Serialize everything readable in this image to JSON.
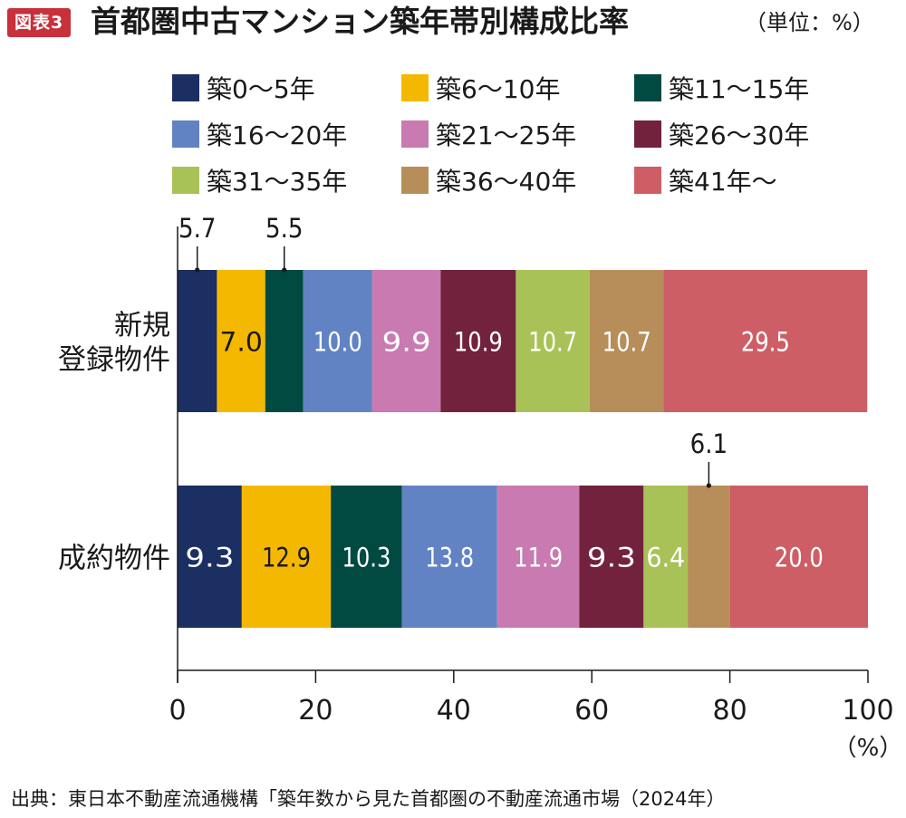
{
  "header": {
    "badge": "図表3",
    "title": "首都圏中古マンション築年帯別構成比率",
    "unit": "（単位：%）"
  },
  "footer": {
    "source": "出典：東日本不動産流通機構「築年数から見た首都圏の不動産流通市場（2024年）"
  },
  "chart_data": {
    "type": "bar",
    "orientation": "horizontal",
    "stacked": true,
    "categories": [
      "新規\n登録物件",
      "成約物件"
    ],
    "series": [
      {
        "name": "築0～5年",
        "color": "#1b2f63",
        "values": [
          5.7,
          9.3
        ]
      },
      {
        "name": "築6～10年",
        "color": "#f5b800",
        "values": [
          7.0,
          12.9
        ]
      },
      {
        "name": "築11～15年",
        "color": "#004a42",
        "values": [
          5.5,
          10.3
        ]
      },
      {
        "name": "築16～20年",
        "color": "#6283c3",
        "values": [
          10.0,
          13.8
        ]
      },
      {
        "name": "築21～25年",
        "color": "#c97ab0",
        "values": [
          9.9,
          11.9
        ]
      },
      {
        "name": "築26～30年",
        "color": "#72223c",
        "values": [
          10.9,
          9.3
        ]
      },
      {
        "name": "築31～35年",
        "color": "#a9c257",
        "values": [
          10.7,
          6.4
        ]
      },
      {
        "name": "築36～40年",
        "color": "#b78e5a",
        "values": [
          10.7,
          6.1
        ]
      },
      {
        "name": "築41年～",
        "color": "#cd5e66",
        "values": [
          29.5,
          20.0
        ]
      }
    ],
    "xlim": [
      0,
      100
    ],
    "xticks": [
      "0",
      "20",
      "40",
      "60",
      "80",
      "100"
    ],
    "xunit": "（%）",
    "callout_labels": [
      {
        "series": 0,
        "category": 0,
        "text": "5.7"
      },
      {
        "series": 2,
        "category": 0,
        "text": "5.5"
      },
      {
        "series": 7,
        "category": 1,
        "text": "6.1"
      }
    ],
    "legend_position": "top"
  }
}
